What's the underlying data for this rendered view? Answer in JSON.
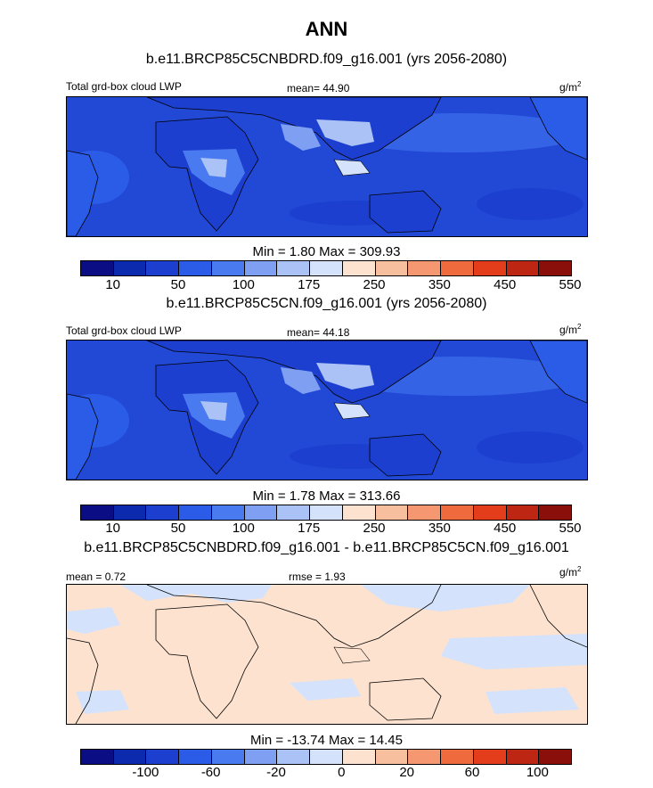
{
  "title": "ANN",
  "panels": [
    {
      "case": "b.e11.BRCP85C5CNBDRD.f09_g16.001 (yrs 2056-2080)",
      "left_label": "Total grd-box cloud LWP",
      "center_label": "mean=  44.90",
      "units": "g/m",
      "units_sup": "2",
      "minmax": "Min =   1.80 Max = 309.93"
    },
    {
      "case": "b.e11.BRCP85C5CN.f09_g16.001 (yrs 2056-2080)",
      "left_label": "Total grd-box cloud LWP",
      "center_label": "mean=  44.18",
      "units": "g/m",
      "units_sup": "2",
      "minmax": "Min =   1.78 Max = 313.66"
    },
    {
      "case": "b.e11.BRCP85C5CNBDRD.f09_g16.001 - b.e11.BRCP85C5CN.f09_g16.001",
      "left_label": "mean =   0.72",
      "center_label": "rmse =   1.93",
      "units": "g/m",
      "units_sup": "2",
      "minmax": "Min = -13.74 Max =  14.45"
    }
  ],
  "colorbar_abs": {
    "colors": [
      "#0a0d83",
      "#0b2aad",
      "#1c3fcf",
      "#2b5ce8",
      "#4a7af0",
      "#7fa0f2",
      "#aac2f5",
      "#d4e3fb",
      "#fde2cf",
      "#f8bf9e",
      "#f59770",
      "#ef6b3e",
      "#e33d1b",
      "#bd2613",
      "#8a0f0b"
    ],
    "labels": [
      "10",
      "50",
      "100",
      "175",
      "250",
      "350",
      "450",
      "550"
    ]
  },
  "colorbar_diff": {
    "colors": [
      "#0a0d83",
      "#0b2aad",
      "#1c3fcf",
      "#2b5ce8",
      "#4a7af0",
      "#7fa0f2",
      "#aac2f5",
      "#d4e3fb",
      "#fde2cf",
      "#f8bf9e",
      "#f59770",
      "#ef6b3e",
      "#e33d1b",
      "#bd2613",
      "#8a0f0b"
    ],
    "labels": [
      "-100",
      "-60",
      "-20",
      "0",
      "20",
      "60",
      "100"
    ]
  },
  "chart_data": [
    {
      "type": "heatmap",
      "title": "b.e11.BRCP85C5CNBDRD.f09_g16.001 (yrs 2056-2080)",
      "variable": "Total grd-box cloud LWP",
      "units": "g/m2",
      "mean": 44.9,
      "min": 1.8,
      "max": 309.93,
      "levels": [
        10,
        25,
        50,
        75,
        100,
        125,
        150,
        175,
        200,
        250,
        300,
        350,
        400,
        450,
        500,
        550
      ]
    },
    {
      "type": "heatmap",
      "title": "b.e11.BRCP85C5CN.f09_g16.001 (yrs 2056-2080)",
      "variable": "Total grd-box cloud LWP",
      "units": "g/m2",
      "mean": 44.18,
      "min": 1.78,
      "max": 313.66,
      "levels": [
        10,
        25,
        50,
        75,
        100,
        125,
        150,
        175,
        200,
        250,
        300,
        350,
        400,
        450,
        500,
        550
      ]
    },
    {
      "type": "heatmap",
      "title": "b.e11.BRCP85C5CNBDRD.f09_g16.001 - b.e11.BRCP85C5CN.f09_g16.001",
      "units": "g/m2",
      "mean": 0.72,
      "rmse": 1.93,
      "min": -13.74,
      "max": 14.45,
      "levels": [
        -100,
        -80,
        -60,
        -40,
        -20,
        -10,
        0,
        10,
        20,
        40,
        60,
        80,
        100
      ]
    }
  ]
}
